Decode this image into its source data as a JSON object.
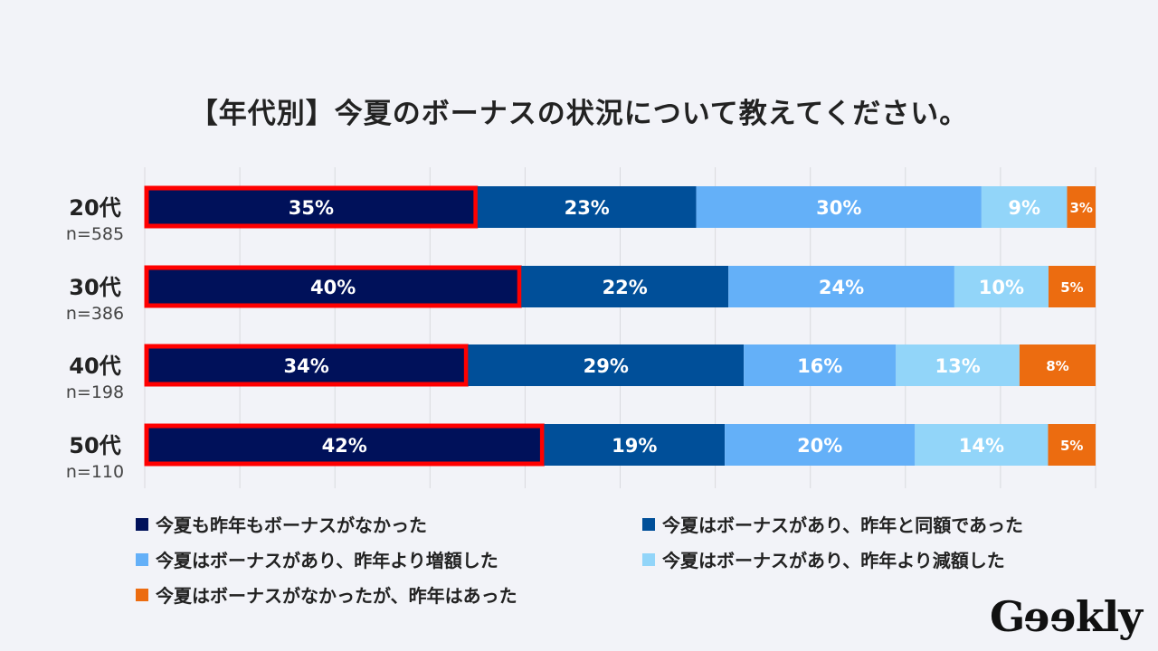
{
  "chart_data": {
    "type": "bar",
    "orientation": "horizontal",
    "stacked": "percent",
    "title": "【年代別】今夏のボーナスの状況について教えてください。",
    "categories": [
      "20代",
      "30代",
      "40代",
      "50代"
    ],
    "sample_sizes": [
      "n=585",
      "n=386",
      "n=198",
      "n=110"
    ],
    "xlim": [
      0,
      100
    ],
    "grid": true,
    "legend_position": "bottom",
    "highlight": {
      "series_index": 0,
      "outline_color": "#ff0000"
    },
    "series": [
      {
        "name": "今夏も昨年もボーナスがなかった",
        "color": "#00115a",
        "values": [
          35,
          40,
          34,
          42
        ]
      },
      {
        "name": "今夏はボーナスがあり、昨年と同額であった",
        "color": "#004f99",
        "values": [
          23,
          22,
          29,
          19
        ]
      },
      {
        "name": "今夏はボーナスがあり、昨年より増額した",
        "color": "#64b0f8",
        "values": [
          30,
          24,
          16,
          20
        ]
      },
      {
        "name": "今夏はボーナスがあり、昨年より減額した",
        "color": "#92d5f9",
        "values": [
          9,
          10,
          13,
          14
        ]
      },
      {
        "name": "今夏はボーナスがなかったが、昨年はあった",
        "color": "#ec6c10",
        "values": [
          3,
          5,
          8,
          5
        ]
      }
    ]
  },
  "logo": "Geekly"
}
